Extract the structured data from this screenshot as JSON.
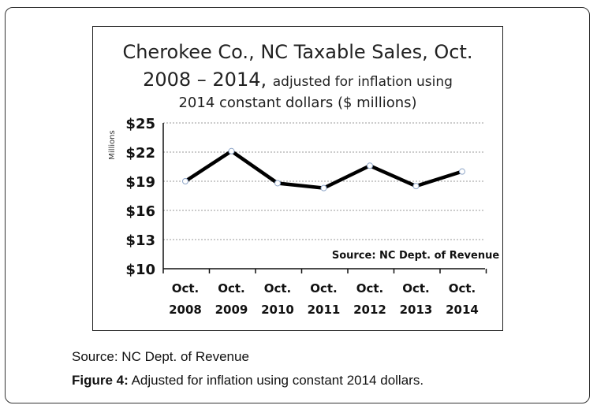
{
  "chart_data": {
    "type": "line",
    "title_line1": "Cherokee Co., NC Taxable Sales, Oct.",
    "title_line2_main": "2008 – 2014,",
    "title_line2_sub": "adjusted for inflation using",
    "title_line3": "2014 constant dollars ($ millions)",
    "ylabel": "Millions",
    "categories": [
      {
        "line1": "Oct.",
        "line2": "2008"
      },
      {
        "line1": "Oct.",
        "line2": "2009"
      },
      {
        "line1": "Oct.",
        "line2": "2010"
      },
      {
        "line1": "Oct.",
        "line2": "2011"
      },
      {
        "line1": "Oct.",
        "line2": "2012"
      },
      {
        "line1": "Oct.",
        "line2": "2013"
      },
      {
        "line1": "Oct.",
        "line2": "2014"
      }
    ],
    "values": [
      19.0,
      22.1,
      18.8,
      18.3,
      20.6,
      18.5,
      20.0
    ],
    "ylim": [
      10,
      25
    ],
    "yticks": [
      10,
      13,
      16,
      19,
      22,
      25
    ],
    "ytick_labels": [
      "$10",
      "$13",
      "$16",
      "$19",
      "$22",
      "$25"
    ],
    "grid": true,
    "annotation": "Source: NC Dept. of Revenue",
    "line_color": "#000000",
    "grid_color": "#999999"
  },
  "caption": {
    "source": "Source: NC Dept. of Revenue",
    "figure_label": "Figure 4:",
    "figure_text": " Adjusted for inflation using constant 2014 dollars."
  }
}
